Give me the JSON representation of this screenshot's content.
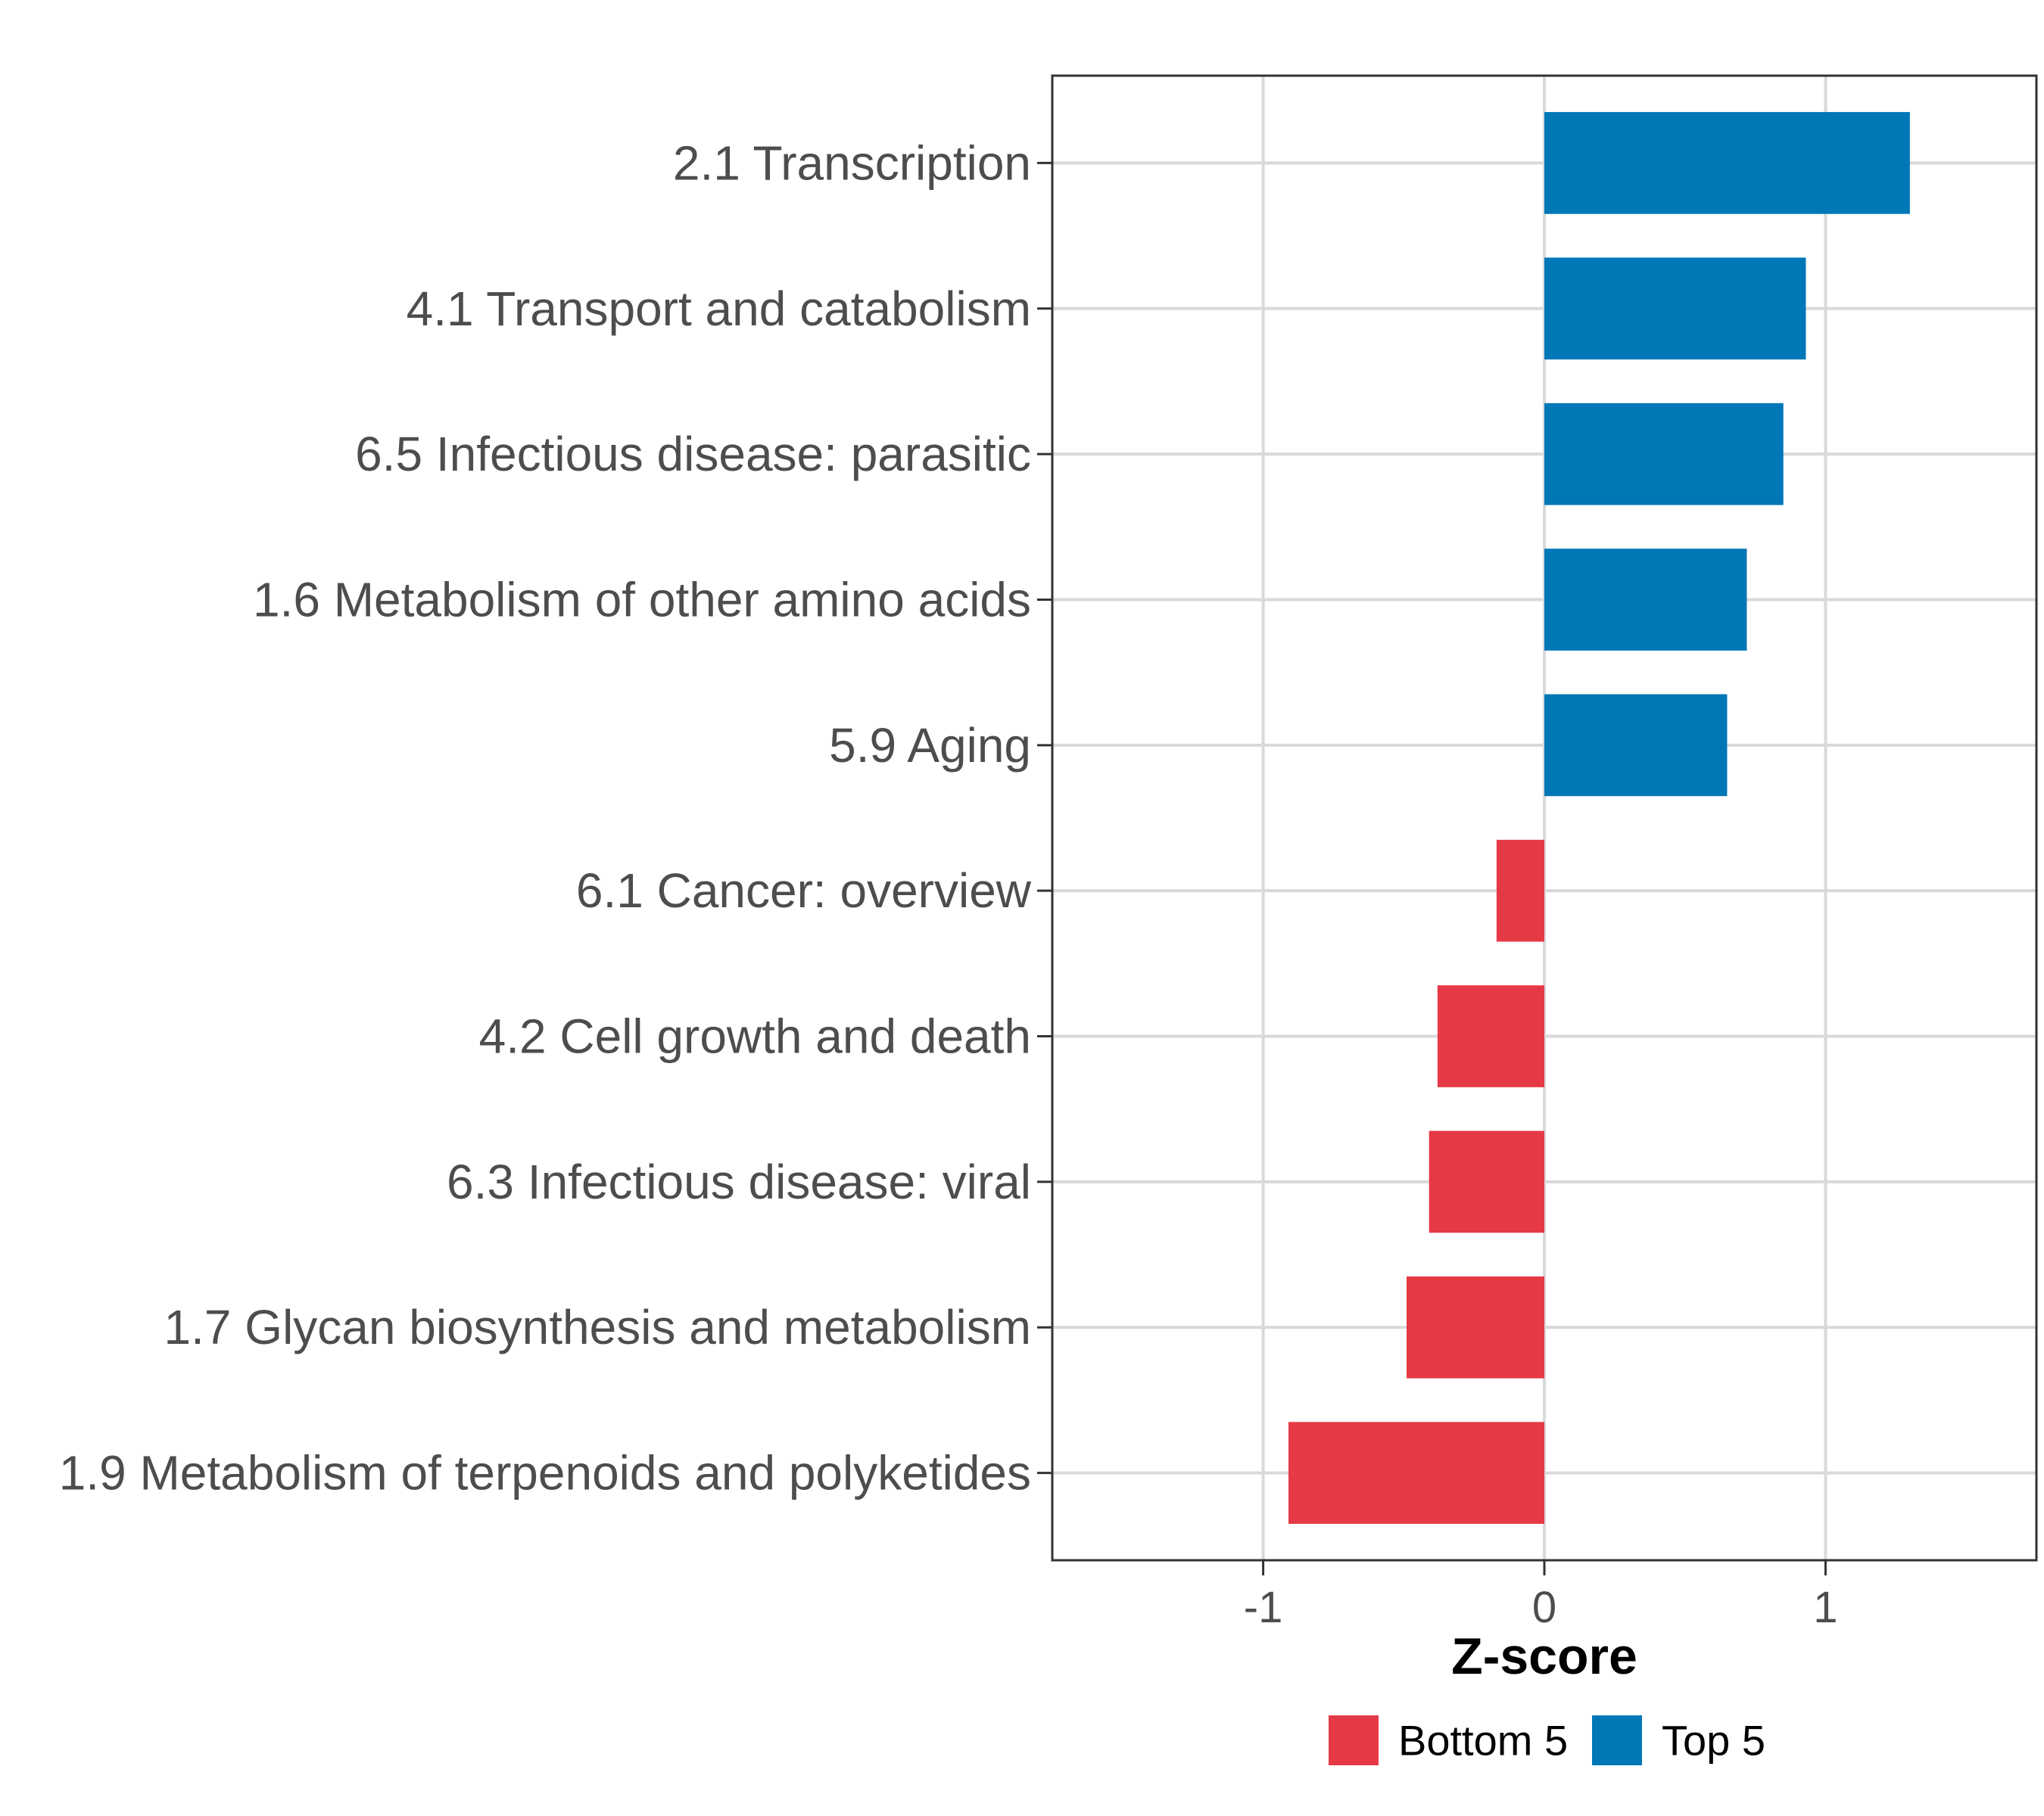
{
  "chart_data": {
    "type": "bar",
    "orientation": "horizontal",
    "xlabel": "Z-score",
    "ylabel": "",
    "xlim": [
      -1.75,
      1.75
    ],
    "xticks": [
      -1,
      0,
      1
    ],
    "xtick_labels": [
      "-1",
      "0",
      "1"
    ],
    "grid": true,
    "legend_position": "bottom",
    "categories": [
      "2.1 Transcription",
      "4.1 Transport and catabolism",
      "6.5 Infectious disease: parasitic",
      "1.6 Metabolism of other amino acids",
      "5.9 Aging",
      "6.1 Cancer: overview",
      "4.2 Cell growth and death",
      "6.3 Infectious disease: viral",
      "1.7 Glycan biosynthesis and metabolism",
      "1.9 Metabolism of terpenoids and polyketides"
    ],
    "values": [
      1.3,
      0.93,
      0.85,
      0.72,
      0.65,
      -0.17,
      -0.38,
      -0.41,
      -0.49,
      -0.91
    ],
    "groups": [
      "Top 5",
      "Top 5",
      "Top 5",
      "Top 5",
      "Top 5",
      "Bottom 5",
      "Bottom 5",
      "Bottom 5",
      "Bottom 5",
      "Bottom 5"
    ],
    "legend": [
      {
        "name": "Bottom 5",
        "color": "#e63946"
      },
      {
        "name": "Top 5",
        "color": "#0077b6"
      }
    ]
  }
}
